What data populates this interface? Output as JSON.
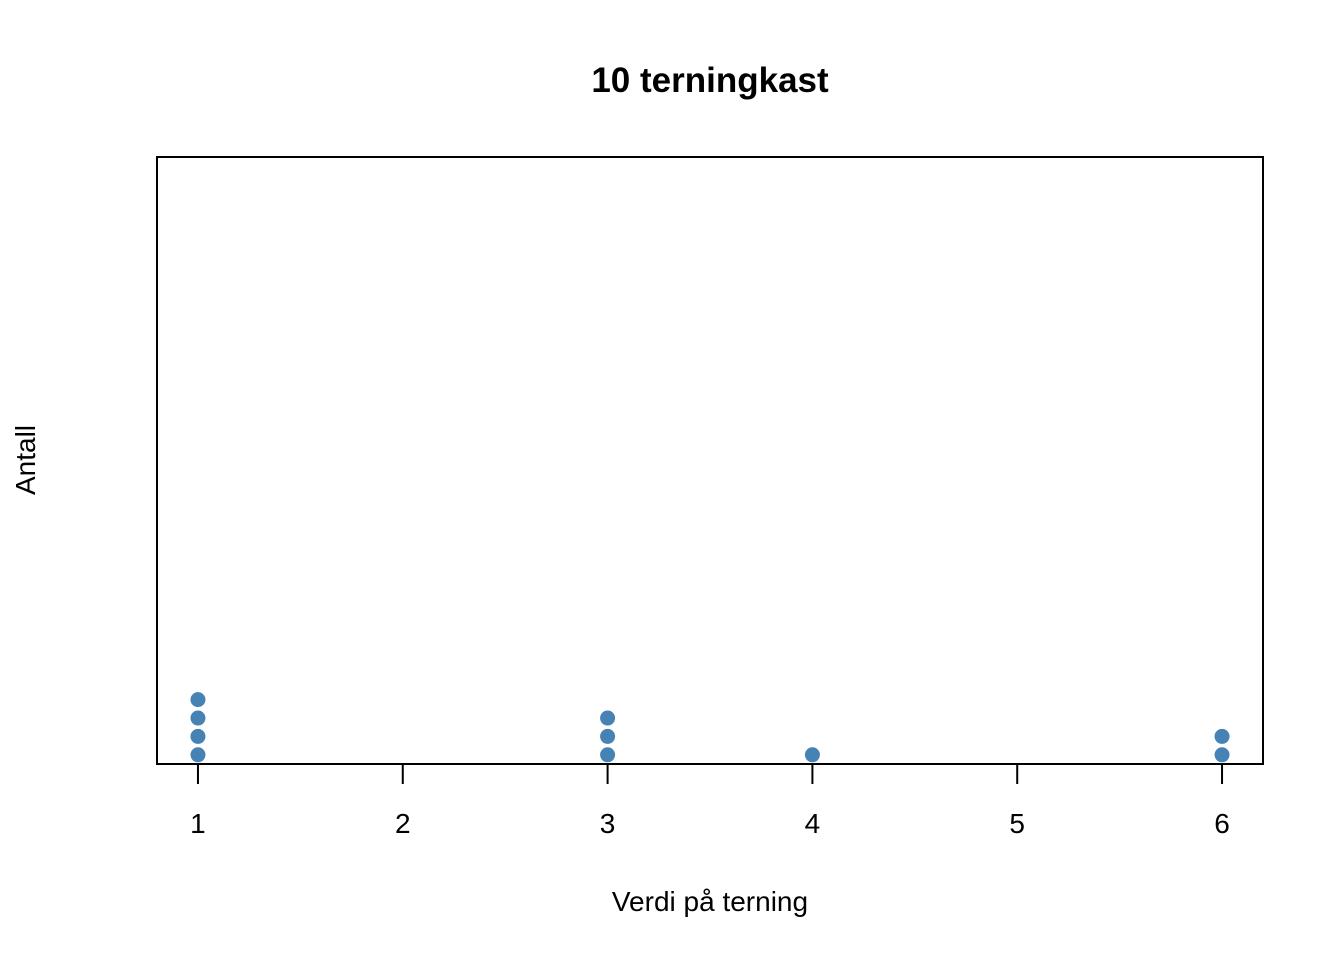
{
  "chart_data": {
    "type": "scatter",
    "subtype": "dot-plot",
    "title": "10 terningkast",
    "xlabel": "Verdi på terning",
    "ylabel": "Antall",
    "x_ticks": [
      "1",
      "2",
      "3",
      "4",
      "5",
      "6"
    ],
    "xlim": [
      0.8,
      6.2
    ],
    "ylim": [
      0.5,
      33.5
    ],
    "y_ticks_shown": false,
    "grid": false,
    "point_color": "#4682B4",
    "values": [
      1,
      1,
      1,
      1,
      3,
      3,
      3,
      4,
      6,
      6
    ],
    "counts": [
      {
        "x": 1,
        "count": 4
      },
      {
        "x": 2,
        "count": 0
      },
      {
        "x": 3,
        "count": 3
      },
      {
        "x": 4,
        "count": 1
      },
      {
        "x": 5,
        "count": 0
      },
      {
        "x": 6,
        "count": 2
      }
    ]
  }
}
